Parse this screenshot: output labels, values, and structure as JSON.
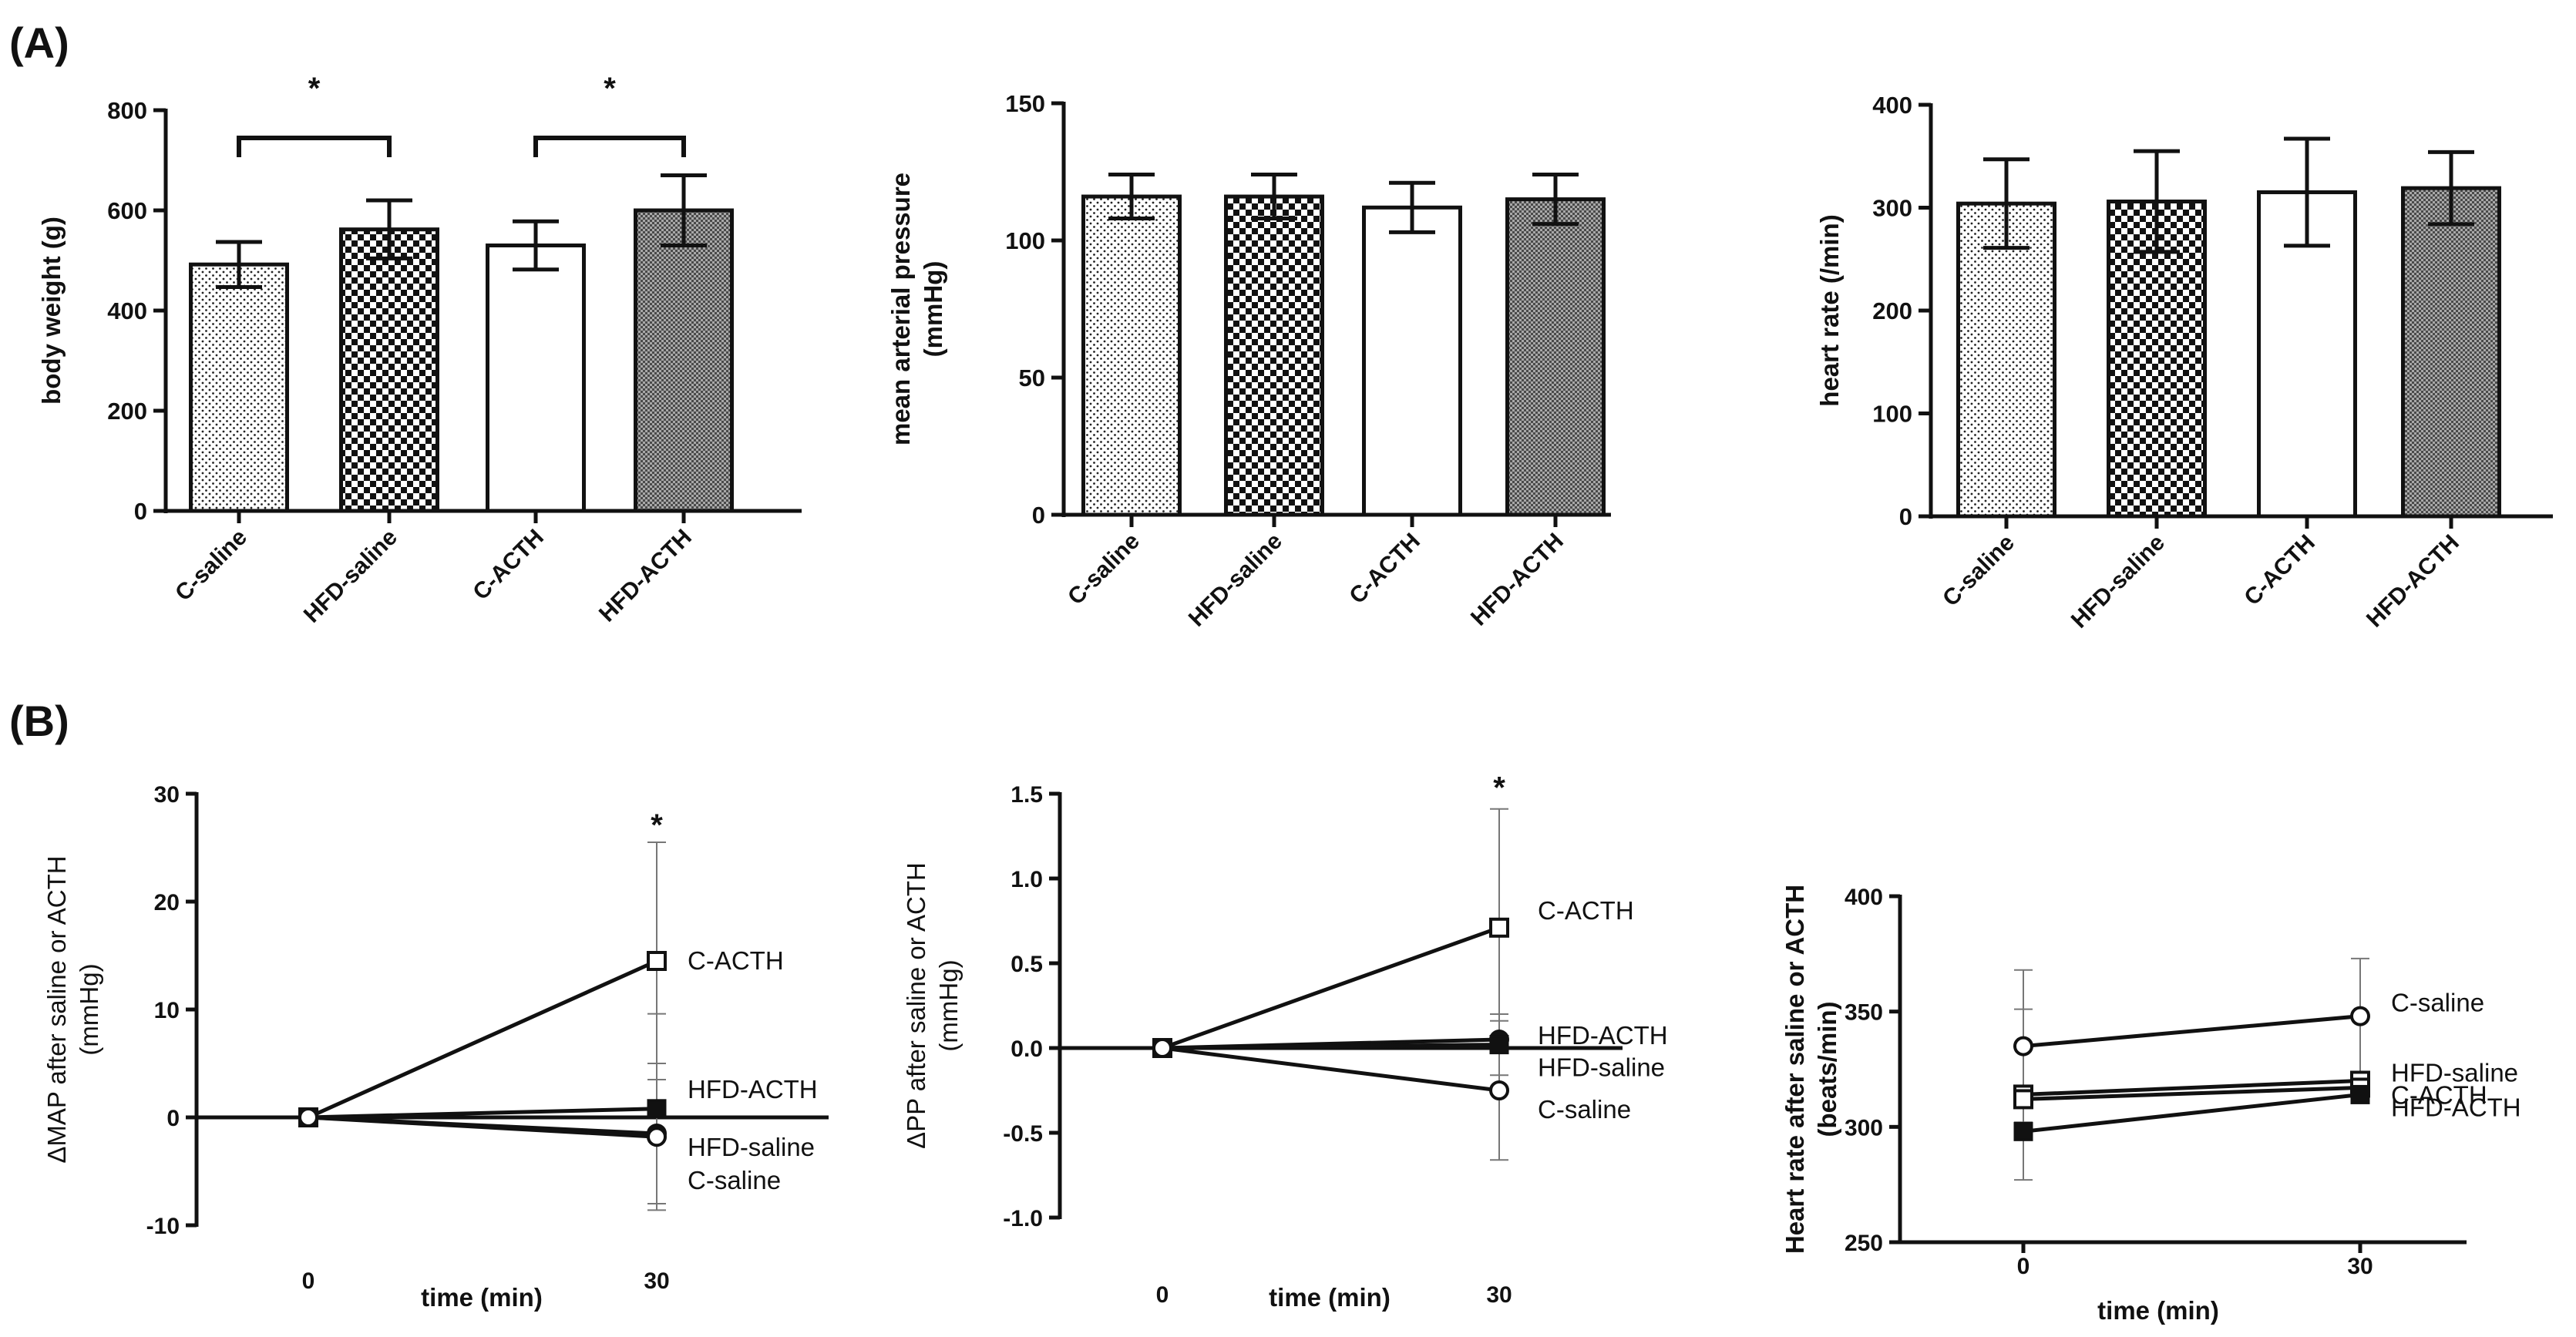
{
  "panels": {
    "A": {
      "label": "(A)"
    },
    "B": {
      "label": "(B)"
    }
  },
  "colors": {
    "ink": "#111111",
    "hfd_acth_fill": "#9a9a9a"
  },
  "chart_data": [
    {
      "id": "bw",
      "type": "bar",
      "title": "",
      "ylabel": [
        "body weight (g)"
      ],
      "categories": [
        "C-saline",
        "HFD-saline",
        "C-ACTH",
        "HFD-ACTH"
      ],
      "patterns": [
        "dots",
        "check",
        "white",
        "fine"
      ],
      "values": [
        492,
        562,
        530,
        600
      ],
      "errors": [
        45,
        58,
        48,
        70
      ],
      "ylim": [
        0,
        800
      ],
      "yticks": [
        0,
        200,
        400,
        600,
        800
      ],
      "significance": [
        {
          "from": 0,
          "to": 1,
          "label": "*"
        },
        {
          "from": 2,
          "to": 3,
          "label": "*"
        }
      ]
    },
    {
      "id": "map",
      "type": "bar",
      "title": "",
      "ylabel": [
        "mean arterial pressure",
        "(mmHg)"
      ],
      "categories": [
        "C-saline",
        "HFD-saline",
        "C-ACTH",
        "HFD-ACTH"
      ],
      "patterns": [
        "dots",
        "check",
        "white",
        "fine"
      ],
      "values": [
        116,
        116,
        112,
        115
      ],
      "errors": [
        8,
        8,
        9,
        9
      ],
      "ylim": [
        0,
        150
      ],
      "yticks": [
        0,
        50,
        100,
        150
      ],
      "significance": []
    },
    {
      "id": "hr",
      "type": "bar",
      "title": "",
      "ylabel": [
        "heart rate (/min)"
      ],
      "categories": [
        "C-saline",
        "HFD-saline",
        "C-ACTH",
        "HFD-ACTH"
      ],
      "patterns": [
        "dots",
        "check",
        "white",
        "fine"
      ],
      "values": [
        304,
        306,
        315,
        319
      ],
      "errors": [
        43,
        49,
        52,
        35
      ],
      "ylim": [
        0,
        400
      ],
      "yticks": [
        0,
        100,
        200,
        300,
        400
      ],
      "significance": []
    },
    {
      "id": "dmap",
      "type": "line",
      "title": "",
      "ylabel": [
        "ΔMAP after saline or ACTH",
        "(mmHg)"
      ],
      "xlabel": "time (min)",
      "x": [
        0,
        30
      ],
      "xticks": [
        0,
        30
      ],
      "ylim": [
        -10,
        30
      ],
      "yticks": [
        -10,
        0,
        10,
        20,
        30
      ],
      "series": [
        {
          "name": "C-ACTH",
          "marker": "open-square",
          "values": [
            0,
            14.5
          ],
          "err": [
            0,
            11
          ]
        },
        {
          "name": "HFD-ACTH",
          "marker": "filled-square",
          "values": [
            0,
            0.8
          ],
          "err": [
            0,
            8.8
          ]
        },
        {
          "name": "HFD-saline",
          "marker": "filled-circle",
          "values": [
            0,
            -1.5
          ],
          "err": [
            0,
            0
          ]
        },
        {
          "name": "C-saline",
          "marker": "open-circle",
          "values": [
            0,
            -1.8
          ],
          "err": [
            0,
            6.8
          ]
        }
      ],
      "annotations": [
        {
          "x": 30,
          "y": 27,
          "text": "*"
        }
      ]
    },
    {
      "id": "dpp",
      "type": "line",
      "title": "",
      "ylabel": [
        "ΔPP after saline or ACTH",
        "(mmHg)"
      ],
      "xlabel": "time (min)",
      "x": [
        0,
        30
      ],
      "xticks": [
        0,
        30
      ],
      "ylim": [
        -1.0,
        1.5
      ],
      "yticks": [
        -1.0,
        -0.5,
        0.0,
        0.5,
        1.0,
        1.5
      ],
      "yticklabels": [
        "-1.0",
        "-0.5",
        "0.0",
        "0.5",
        "1.0",
        "1.5"
      ],
      "series": [
        {
          "name": "C-ACTH",
          "marker": "open-square",
          "values": [
            0,
            0.71
          ],
          "err": [
            0,
            0.7
          ]
        },
        {
          "name": "HFD-ACTH",
          "marker": "filled-circle",
          "values": [
            0,
            0.05
          ],
          "err": [
            0,
            0
          ]
        },
        {
          "name": "HFD-saline",
          "marker": "filled-square",
          "values": [
            0,
            0.02
          ],
          "err": [
            0,
            0.18
          ]
        },
        {
          "name": "C-saline",
          "marker": "open-circle",
          "values": [
            0,
            -0.25
          ],
          "err": [
            0,
            0.41
          ]
        }
      ],
      "annotations": [
        {
          "x": 30,
          "y": 1.53,
          "text": "*"
        }
      ]
    },
    {
      "id": "hrb",
      "type": "line",
      "title": "",
      "ylabel": [
        "Heart rate after saline or ACTH",
        "(beats/min)"
      ],
      "xlabel": "time (min)",
      "x": [
        0,
        30
      ],
      "xticks": [
        0,
        30
      ],
      "ylim": [
        250,
        400
      ],
      "yticks": [
        250,
        300,
        350,
        400
      ],
      "series": [
        {
          "name": "C-saline",
          "marker": "open-circle",
          "values": [
            335,
            348
          ],
          "err": [
            33,
            25
          ]
        },
        {
          "name": "HFD-saline",
          "marker": "open-square",
          "values": [
            314,
            320
          ],
          "err": [
            37,
            0
          ]
        },
        {
          "name": "C-ACTH",
          "marker": "open-square",
          "values": [
            312,
            317
          ],
          "err": [
            0,
            0
          ]
        },
        {
          "name": "HFD-ACTH",
          "marker": "filled-square",
          "values": [
            298,
            314
          ],
          "err": [
            0,
            0
          ]
        }
      ],
      "annotations": []
    }
  ]
}
